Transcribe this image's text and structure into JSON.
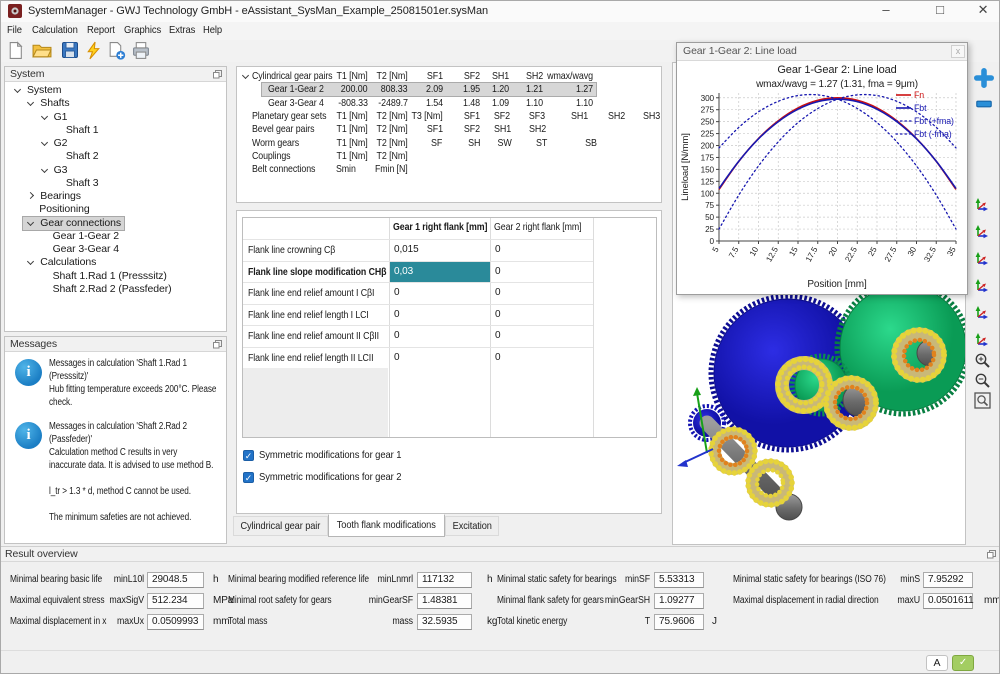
{
  "window": {
    "title": "SystemManager - GWJ Technology GmbH - eAssistant_SysMan_Example_25081501er.sysMan"
  },
  "menu": {
    "items": [
      "File",
      "Calculation",
      "Report",
      "Graphics",
      "Extras",
      "Help"
    ]
  },
  "toolbar": {
    "icons": [
      "new-file",
      "open-file",
      "save-file",
      "calculate",
      "new-report",
      "print"
    ]
  },
  "system_panel": {
    "title": "System",
    "tree": [
      {
        "label": "System",
        "level": 0,
        "chevron": "open"
      },
      {
        "label": "Shafts",
        "level": 1,
        "chevron": "open"
      },
      {
        "label": "G1",
        "level": 2,
        "chevron": "open"
      },
      {
        "label": "Shaft 1",
        "level": 3,
        "chevron": "none"
      },
      {
        "label": "G2",
        "level": 2,
        "chevron": "open"
      },
      {
        "label": "Shaft 2",
        "level": 3,
        "chevron": "none"
      },
      {
        "label": "G3",
        "level": 2,
        "chevron": "open"
      },
      {
        "label": "Shaft 3",
        "level": 3,
        "chevron": "none"
      },
      {
        "label": "Bearings",
        "level": 1,
        "chevron": "closed"
      },
      {
        "label": "Positioning",
        "level": 1,
        "chevron": "none"
      },
      {
        "label": "Gear connections",
        "level": 1,
        "chevron": "open",
        "selected": true
      },
      {
        "label": "Gear 1-Gear 2",
        "level": 2,
        "chevron": "none"
      },
      {
        "label": "Gear 3-Gear 4",
        "level": 2,
        "chevron": "none"
      },
      {
        "label": "Calculations",
        "level": 1,
        "chevron": "open"
      },
      {
        "label": "Shaft 1.Rad 1 (Presssitz)",
        "level": 2,
        "chevron": "none"
      },
      {
        "label": "Shaft 2.Rad 2 (Passfeder)",
        "level": 2,
        "chevron": "none"
      }
    ]
  },
  "messages_panel": {
    "title": "Messages",
    "messages": [
      {
        "lines": [
          "Messages in calculation 'Shaft 1.Rad 1",
          "(Presssitz)'",
          "Hub fitting temperature exceeds 200°C. Please",
          "check."
        ]
      },
      {
        "lines": [
          "Messages in calculation 'Shaft 2.Rad 2",
          "(Passfeder)'",
          "Calculation method C results in very",
          "inaccurate data. It is advised to use method B.",
          "",
          "l_tr > 1.3 * d, method C cannot be used.",
          "",
          "The minimum safeties are not achieved."
        ]
      }
    ]
  },
  "gear_table": {
    "rows": [
      {
        "type": "cyl",
        "label": "Cylindrical gear pairs",
        "chevron": true,
        "cells": [
          "T1 [Nm]",
          "T2 [Nm]",
          "SF1",
          "SF2",
          "SH1",
          "SH2",
          "wmax/wavg"
        ]
      },
      {
        "type": "cyl",
        "label": "Gear 1-Gear 2",
        "indent": true,
        "selected": true,
        "cells": [
          "200.00",
          "808.33",
          "2.09",
          "1.95",
          "1.20",
          "1.21",
          "1.27"
        ]
      },
      {
        "type": "cyl",
        "label": "Gear 3-Gear 4",
        "indent": true,
        "cells": [
          "-808.33",
          "-2489.7",
          "1.54",
          "1.48",
          "1.09",
          "1.10",
          "1.10"
        ]
      },
      {
        "type": "planetary",
        "label": "Planetary gear sets",
        "cells": [
          "T1 [Nm]",
          "T2 [Nm]",
          "T3 [Nm]",
          "SF1",
          "SF2",
          "SF3",
          "SH1",
          "SH2",
          "SH3"
        ]
      },
      {
        "type": "bevel",
        "label": "Bevel gear pairs",
        "cells": [
          "T1 [Nm]",
          "T2 [Nm]",
          "SF1",
          "SF2",
          "SH1",
          "SH2"
        ]
      },
      {
        "type": "worm",
        "label": "Worm gears",
        "cells": [
          "T1 [Nm]",
          "T2 [Nm]",
          "SF",
          "SH",
          "SW",
          "ST",
          "SB"
        ]
      },
      {
        "type": "couplings",
        "label": "Couplings",
        "cells": [
          "T1 [Nm]",
          "T2 [Nm]"
        ]
      },
      {
        "type": "belt",
        "label": "Belt connections",
        "cells": [
          "Smin",
          "Fmin [N]"
        ]
      }
    ]
  },
  "flank_panel": {
    "col_headers": [
      "Gear 1 right flank [mm]",
      "Gear 2 right flank [mm]"
    ],
    "rows": [
      {
        "label": "Flank line crowning Cβ",
        "gear1": "0,015",
        "gear2": "0"
      },
      {
        "label": "Flank line slope modification CHβ",
        "gear1": "0,03",
        "gear2": "0",
        "selected": true
      },
      {
        "label": "Flank line end relief amount I CβI",
        "gear1": "0",
        "gear2": "0"
      },
      {
        "label": "Flank line end relief length I LCI",
        "gear1": "0",
        "gear2": "0"
      },
      {
        "label": "Flank line end relief amount II CβII",
        "gear1": "0",
        "gear2": "0"
      },
      {
        "label": "Flank line end relief length II LCII",
        "gear1": "0",
        "gear2": "0"
      }
    ],
    "selected_cell_color": "#2a8a9a",
    "checkboxes": [
      {
        "label": "Symmetric modifications for gear 1",
        "checked": true
      },
      {
        "label": "Symmetric modifications for gear 2",
        "checked": true
      }
    ],
    "tabs": [
      {
        "label": "Cylindrical gear pair",
        "active": false
      },
      {
        "label": "Tooth flank modifications",
        "active": true
      },
      {
        "label": "Excitation",
        "active": false
      }
    ]
  },
  "chart_window": {
    "title": "Gear 1-Gear 2: Line load"
  },
  "chart_data": {
    "type": "line",
    "title": "Gear 1-Gear 2: Line load",
    "subtitle": "wmax/wavg = 1.27 (1.31, fma = 9μm)",
    "xlabel": "Position [mm]",
    "ylabel": "Lineload [N/mm]",
    "xlim": [
      5,
      35
    ],
    "ylim": [
      0,
      300
    ],
    "grid": true,
    "legend_position": "top-right",
    "xticks": [
      "5",
      "7.5",
      "10",
      "12.5",
      "15",
      "17.5",
      "20",
      "22.5",
      "25",
      "27.5",
      "30",
      "32.5",
      "35"
    ],
    "yticks": [
      0,
      25,
      50,
      75,
      100,
      125,
      150,
      175,
      200,
      225,
      250,
      275,
      300
    ],
    "x": [
      5,
      7.5,
      10,
      12.5,
      15,
      17.5,
      20,
      22.5,
      25,
      27.5,
      30,
      32.5,
      35
    ],
    "series": [
      {
        "name": "Fn",
        "color": "#cc1111",
        "style": "solid",
        "values": [
          108,
          166.7,
          214.7,
          252,
          278.7,
          294.7,
          300,
          294.7,
          278.7,
          252,
          214.7,
          166.7,
          108
        ]
      },
      {
        "name": "Fbt",
        "color": "#1818b0",
        "style": "solid",
        "values": [
          110,
          167,
          214,
          250,
          276,
          292,
          297,
          292,
          276,
          250,
          214,
          167,
          110
        ]
      },
      {
        "name": "Fbt (+fma)",
        "color": "#1818b0",
        "style": "dotted",
        "values": [
          195,
          238,
          270.6,
          292.7,
          304.6,
          306,
          297,
          277.6,
          247.9,
          207.7,
          157.2,
          96.2,
          25
        ]
      },
      {
        "name": "Fbt (-fma)",
        "color": "#1818b0",
        "style": "dotted",
        "values": [
          25,
          96.2,
          157.2,
          207.7,
          247.9,
          277.6,
          297,
          306,
          304.6,
          292.7,
          270.6,
          238,
          195
        ]
      }
    ]
  },
  "right_toolbar": {
    "icons": [
      "add",
      "remove",
      "view-iso",
      "view-front",
      "view-left",
      "view-right",
      "view-top",
      "view-bottom",
      "zoom-in",
      "zoom-out",
      "zoom-fit"
    ]
  },
  "result_overview": {
    "title": "Result overview",
    "fields": [
      {
        "col": 1,
        "row": 1,
        "label": "Minimal bearing basic life",
        "symbol": "minL10l",
        "value": "29048.5",
        "unit": "h"
      },
      {
        "col": 2,
        "row": 1,
        "label": "Minimal bearing modified reference life",
        "symbol": "minLnmrl",
        "value": "117132",
        "unit": "h"
      },
      {
        "col": 3,
        "row": 1,
        "label": "Minimal static safety for bearings",
        "symbol": "minSF",
        "value": "5.53313",
        "unit": ""
      },
      {
        "col": 4,
        "row": 1,
        "label": "Minimal static safety for bearings (ISO 76)",
        "symbol": "minS",
        "value": "7.95292",
        "unit": ""
      },
      {
        "col": 1,
        "row": 2,
        "label": "Maximal equivalent stress",
        "symbol": "maxSigV",
        "value": "512.234",
        "unit": "MPa"
      },
      {
        "col": 2,
        "row": 2,
        "label": "Minimal root safety for gears",
        "symbol": "minGearSF",
        "value": "1.48381",
        "unit": ""
      },
      {
        "col": 3,
        "row": 2,
        "label": "Minimal flank safety for gears",
        "symbol": "minGearSH",
        "value": "1.09277",
        "unit": ""
      },
      {
        "col": 4,
        "row": 2,
        "label": "Maximal displacement in radial direction",
        "symbol": "maxU",
        "value": "0.0501611",
        "unit": "mm"
      },
      {
        "col": 1,
        "row": 3,
        "label": "Maximal displacement in x",
        "symbol": "maxUx",
        "value": "0.0509993",
        "unit": "mm"
      },
      {
        "col": 2,
        "row": 3,
        "label": "Total mass",
        "symbol": "mass",
        "value": "32.5935",
        "unit": "kg"
      },
      {
        "col": 3,
        "row": 3,
        "label": "Total kinetic energy",
        "symbol": "T",
        "value": "75.9606",
        "unit": "J"
      }
    ]
  },
  "statusbar": {
    "language_button": "A"
  }
}
